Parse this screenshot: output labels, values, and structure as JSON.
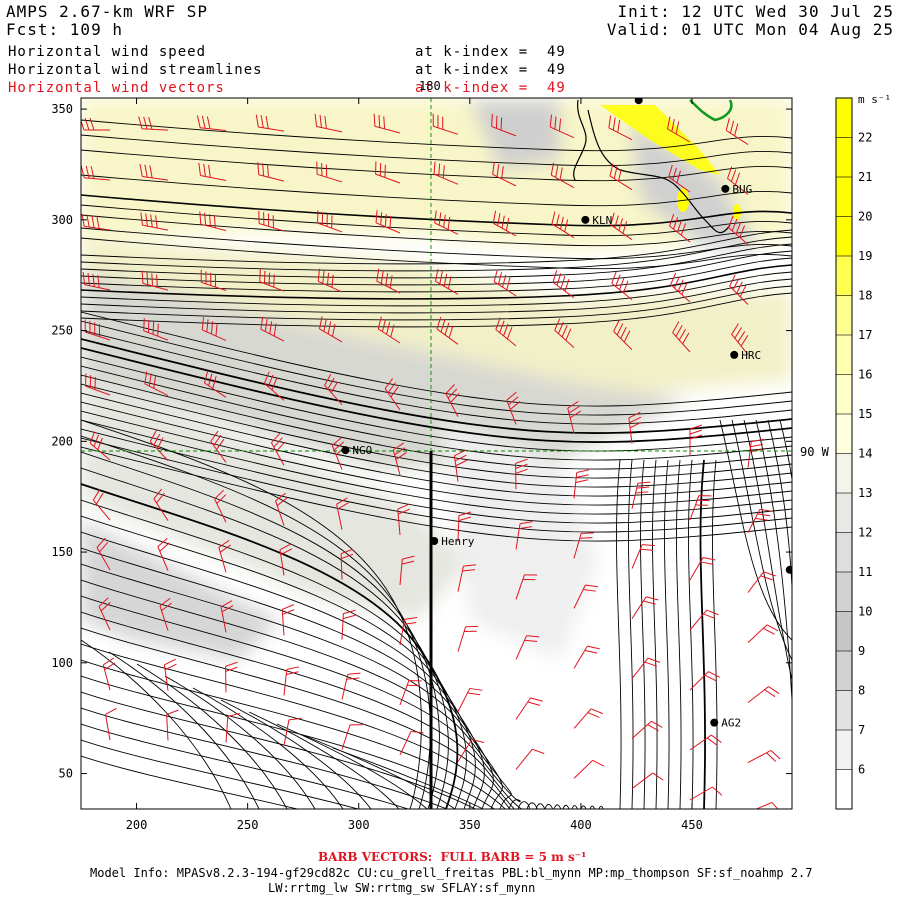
{
  "header": {
    "model": "AMPS 2.67-km WRF SP",
    "forecast": "Fcst: 109 h",
    "init": "Init: 12 UTC Wed 30 Jul 25",
    "valid": "Valid: 01 UTC Mon 04 Aug 25"
  },
  "fields": [
    {
      "label": "Horizontal wind speed",
      "level": "at k-index =  49",
      "color": "#000000"
    },
    {
      "label": "Horizontal wind streamlines",
      "level": "at k-index =  49",
      "color": "#000000"
    },
    {
      "label": "Horizontal wind vectors",
      "level": "at k-index =  49",
      "color": "#e0141e"
    }
  ],
  "axes": {
    "x_ticks": [
      "200",
      "250",
      "300",
      "350",
      "400",
      "450"
    ],
    "x_values": [
      200,
      250,
      300,
      350,
      400,
      450
    ],
    "x_range": [
      175,
      495
    ],
    "y_ticks": [
      "50",
      "100",
      "150",
      "200",
      "250",
      "300",
      "350"
    ],
    "y_values": [
      50,
      100,
      150,
      200,
      250,
      300,
      350
    ],
    "y_range": [
      34,
      355
    ]
  },
  "grid_labels": {
    "meridian": "180",
    "latitude": "90 W"
  },
  "stations": [
    {
      "name": "KLN",
      "x": 402,
      "y": 300
    },
    {
      "name": "BUG",
      "x": 465,
      "y": 314
    },
    {
      "name": "HRC",
      "x": 469,
      "y": 239
    },
    {
      "name": "NGO",
      "x": 294,
      "y": 196
    },
    {
      "name": "Henry",
      "x": 334,
      "y": 155
    },
    {
      "name": "AG2",
      "x": 460,
      "y": 73
    },
    {
      "name": "",
      "x": 494,
      "y": 142
    },
    {
      "name": "",
      "x": 426,
      "y": 354
    }
  ],
  "colorbar": {
    "units": "m s⁻¹",
    "labels": [
      "22",
      "21",
      "20",
      "19",
      "18",
      "17",
      "16",
      "15",
      "14",
      "13",
      "12",
      "11",
      "10",
      "9",
      "8",
      "7",
      "6"
    ],
    "colors": [
      "#ffff00",
      "#ffff00",
      "#ffff00",
      "#ffff00",
      "#ffff50",
      "#ffff90",
      "#ffffb0",
      "#ffffc8",
      "#ffffde",
      "#f4f4ea",
      "#e8e8e4",
      "#dedede",
      "#d2d2d2",
      "#c6c6c6",
      "#d2d2d2",
      "#e2e2e2",
      "#f2f2f2",
      "#ffffff"
    ]
  },
  "footer": {
    "barb_note": "BARB VECTORS:  FULL BARB = 5 m s⁻¹",
    "model_info": "Model Info: MPASv8.2.3-194-gf29cd82c CU:cu_grell_freitas PBL:bl_mynn MP:mp_thompson SF:sf_noahmp 2.7",
    "physics": "LW:rrtmg_lw SW:rrtmg_sw SFLAY:sf_mynn"
  }
}
